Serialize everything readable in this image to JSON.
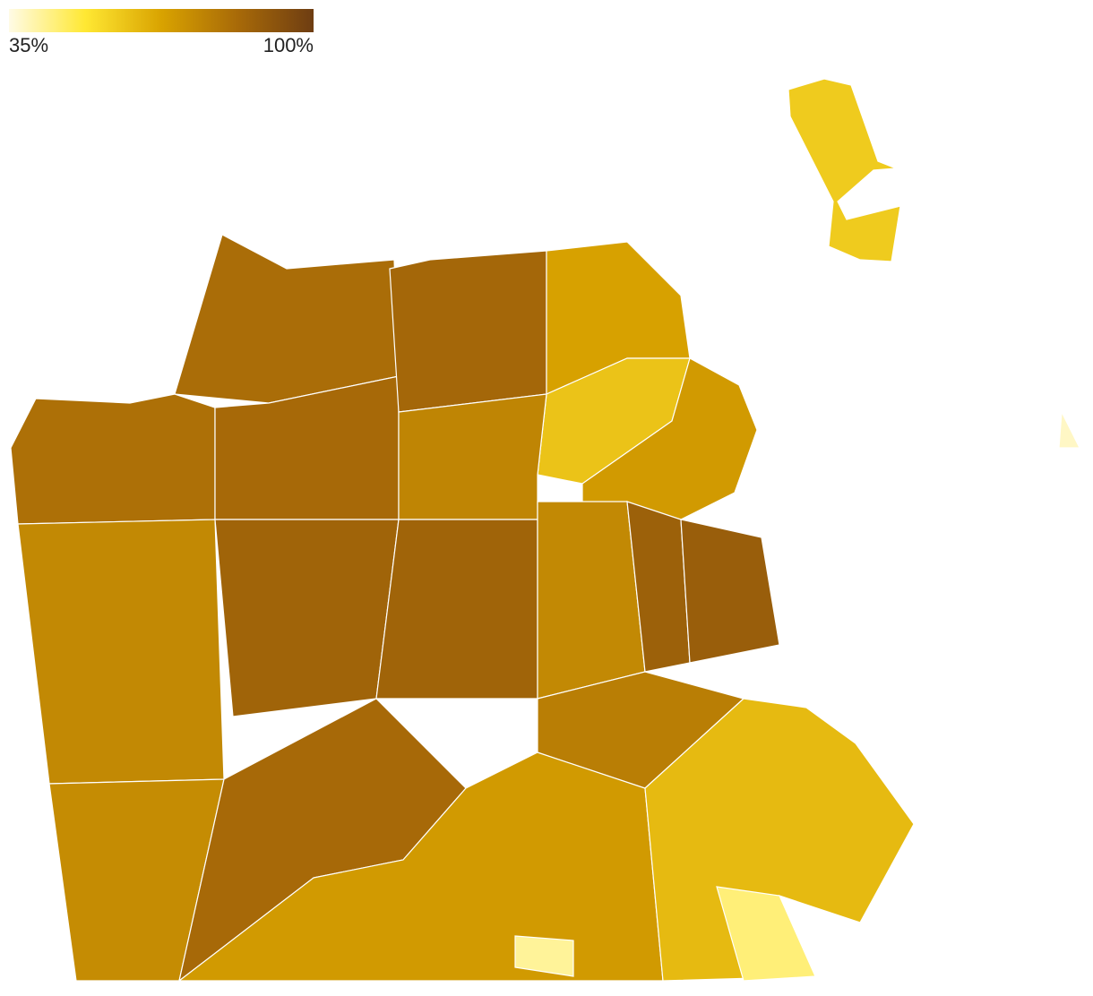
{
  "legend": {
    "min": {
      "value": 35,
      "label": "35%"
    },
    "max": {
      "value": 100,
      "label": "100%"
    },
    "colors": [
      "#fffbe6",
      "#ffe833",
      "#d9a300",
      "#a86a08",
      "#6e3d12"
    ]
  },
  "map": {
    "values": [
      83,
      82,
      84,
      85,
      68,
      60,
      76,
      70,
      75,
      86,
      86,
      75,
      87,
      88,
      74,
      84,
      70,
      78,
      62,
      45,
      42,
      58,
      38
    ]
  }
}
